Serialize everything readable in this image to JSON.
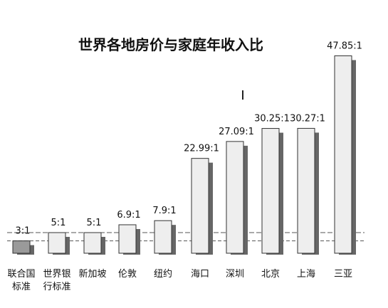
{
  "chart_data": {
    "type": "bar",
    "title": "世界各地房价与家庭年收入比",
    "categories": [
      [
        "联合国",
        "标准"
      ],
      [
        "世界银",
        "行标准"
      ],
      [
        "新加坡"
      ],
      [
        "伦敦"
      ],
      [
        "纽约"
      ],
      [
        "海口"
      ],
      [
        "深圳"
      ],
      [
        "北京"
      ],
      [
        "上海"
      ],
      [
        "三亚"
      ]
    ],
    "values": [
      3,
      5,
      5,
      6.9,
      7.9,
      22.99,
      27.09,
      30.25,
      30.27,
      47.85
    ],
    "value_labels": [
      "3:1",
      "5:1",
      "5:1",
      "6.9:1",
      "7.9:1",
      "22.99:1",
      "27.09:1",
      "30.25:1",
      "30.27:1",
      "47.85:1"
    ],
    "reference_lines": [
      3,
      5
    ],
    "ylim": [
      0,
      48
    ],
    "grid": false,
    "colors": {
      "bar_fill": "#eeeeee",
      "bar_stroke": "#333333",
      "bar_shadow": "#666666",
      "first_bar_fill": "#9a9a9a",
      "reference_line": "#555555"
    }
  }
}
